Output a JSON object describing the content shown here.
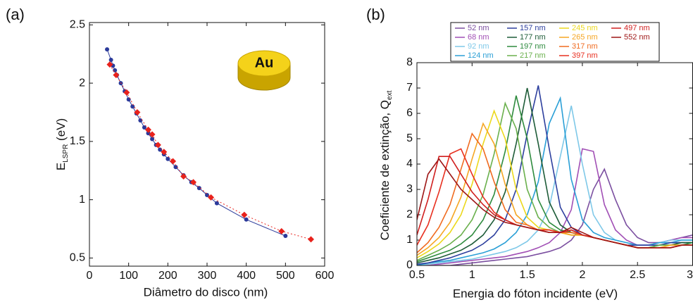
{
  "chart_data": [
    {
      "type": "line",
      "panel_label": "(a)",
      "annotation": "Au",
      "x_label": "Diâmetro do disco (nm)",
      "y_label": [
        "E",
        "LSPR",
        " (eV)"
      ],
      "xlim": [
        0,
        600
      ],
      "ylim": [
        0.43,
        2.52
      ],
      "xticks": [
        0,
        100,
        200,
        300,
        400,
        500,
        600
      ],
      "yticks": [
        0.5,
        1,
        1.5,
        2,
        2.5
      ],
      "grid": false,
      "series": [
        {
          "color": "#2b3a9a",
          "marker": "circle",
          "dash": "solid",
          "x": [
            45,
            55,
            60,
            65,
            70,
            80,
            90,
            100,
            110,
            120,
            130,
            140,
            150,
            160,
            170,
            180,
            190,
            200,
            220,
            240,
            260,
            280,
            300,
            325,
            400,
            500
          ],
          "values": [
            2.29,
            2.2,
            2.15,
            2.11,
            2.07,
            2.0,
            1.93,
            1.86,
            1.8,
            1.74,
            1.68,
            1.62,
            1.57,
            1.52,
            1.47,
            1.43,
            1.39,
            1.35,
            1.28,
            1.21,
            1.15,
            1.1,
            1.04,
            0.97,
            0.83,
            0.69
          ]
        },
        {
          "color": "#e8221c",
          "marker": "diamond",
          "dash": "dotted",
          "x": [
            52,
            68,
            95,
            122,
            150,
            160,
            175,
            190,
            213,
            240,
            265,
            310,
            395,
            490,
            565
          ],
          "values": [
            2.16,
            2.07,
            1.92,
            1.75,
            1.6,
            1.56,
            1.47,
            1.41,
            1.33,
            1.2,
            1.15,
            1.02,
            0.87,
            0.73,
            0.66
          ]
        }
      ]
    },
    {
      "type": "line",
      "panel_label": "(b)",
      "x_label": "Energia do fóton incidente (eV)",
      "y_label": [
        "Coeficiente de extinção, Q",
        "ext"
      ],
      "xlim": [
        0.5,
        3.0
      ],
      "ylim": [
        0,
        8
      ],
      "xticks": [
        0.5,
        1,
        1.5,
        2,
        2.5,
        3
      ],
      "yticks": [
        0,
        1,
        2,
        3,
        4,
        5,
        6,
        7,
        8
      ],
      "grid": false,
      "x": [
        0.5,
        0.6,
        0.7,
        0.8,
        0.9,
        1.0,
        1.1,
        1.2,
        1.3,
        1.4,
        1.5,
        1.6,
        1.7,
        1.8,
        1.9,
        2.0,
        2.1,
        2.2,
        2.3,
        2.4,
        2.5,
        2.6,
        2.7,
        2.8,
        2.9,
        3.0
      ],
      "series": [
        {
          "name": "52 nm",
          "color": "#7b4fa0",
          "values": [
            0,
            0,
            0,
            0,
            0.05,
            0.1,
            0.15,
            0.2,
            0.25,
            0.3,
            0.35,
            0.45,
            0.55,
            0.7,
            1.0,
            1.6,
            3.0,
            3.8,
            2.6,
            1.6,
            1.1,
            0.9,
            0.9,
            1.0,
            1.1,
            1.2
          ]
        },
        {
          "name": "68 nm",
          "color": "#a14fb5",
          "values": [
            0,
            0,
            0.05,
            0.1,
            0.15,
            0.2,
            0.25,
            0.3,
            0.35,
            0.45,
            0.55,
            0.7,
            0.9,
            1.3,
            2.2,
            4.6,
            4.5,
            2.4,
            1.4,
            1.0,
            0.8,
            0.8,
            0.9,
            1.0,
            1.1,
            1.1
          ]
        },
        {
          "name": "92 nm",
          "color": "#7ec8e8",
          "values": [
            0,
            0.05,
            0.1,
            0.15,
            0.2,
            0.25,
            0.35,
            0.45,
            0.55,
            0.7,
            0.95,
            1.4,
            2.3,
            4.3,
            6.3,
            4.0,
            2.0,
            1.3,
            1.0,
            0.9,
            0.8,
            0.8,
            0.9,
            1.0,
            1.0,
            1.0
          ]
        },
        {
          "name": "124 nm",
          "color": "#2a9fd6",
          "values": [
            0,
            0.1,
            0.15,
            0.2,
            0.3,
            0.4,
            0.5,
            0.65,
            0.9,
            1.3,
            2.0,
            3.3,
            5.6,
            6.6,
            3.4,
            1.8,
            1.3,
            1.1,
            1.0,
            0.9,
            0.8,
            0.8,
            0.9,
            0.9,
            1.0,
            1.0
          ]
        },
        {
          "name": "157 nm",
          "color": "#2d3f9e",
          "values": [
            0.05,
            0.1,
            0.2,
            0.3,
            0.45,
            0.6,
            0.85,
            1.2,
            1.8,
            3.0,
            5.2,
            7.1,
            4.6,
            2.3,
            1.5,
            1.2,
            1.1,
            1.0,
            0.9,
            0.8,
            0.8,
            0.8,
            0.8,
            0.9,
            0.9,
            0.9
          ]
        },
        {
          "name": "177 nm",
          "color": "#1e5c38",
          "values": [
            0.1,
            0.2,
            0.3,
            0.45,
            0.6,
            0.85,
            1.2,
            1.8,
            2.9,
            4.8,
            7.0,
            4.8,
            2.5,
            1.6,
            1.3,
            1.2,
            1.1,
            1.0,
            0.9,
            0.8,
            0.7,
            0.7,
            0.8,
            0.8,
            0.9,
            0.9
          ]
        },
        {
          "name": "197 nm",
          "color": "#2e8b3e",
          "values": [
            0.15,
            0.3,
            0.45,
            0.6,
            0.85,
            1.2,
            1.8,
            2.8,
            4.5,
            6.7,
            5.0,
            2.6,
            1.7,
            1.4,
            1.3,
            1.2,
            1.1,
            1.0,
            0.9,
            0.8,
            0.7,
            0.7,
            0.8,
            0.8,
            0.8,
            0.9
          ]
        },
        {
          "name": "217 nm",
          "color": "#6ab04c",
          "values": [
            0.2,
            0.4,
            0.6,
            0.85,
            1.2,
            1.8,
            2.8,
            4.4,
            6.4,
            5.4,
            3.0,
            1.9,
            1.5,
            1.3,
            1.2,
            1.2,
            1.1,
            1.0,
            0.9,
            0.8,
            0.7,
            0.7,
            0.8,
            0.8,
            0.8,
            0.8
          ]
        },
        {
          "name": "245 nm",
          "color": "#ecd81c",
          "values": [
            0.3,
            0.55,
            0.85,
            1.3,
            2.0,
            3.2,
            4.8,
            6.1,
            5.0,
            3.0,
            1.9,
            1.5,
            1.4,
            1.3,
            1.2,
            1.2,
            1.1,
            1.0,
            0.9,
            0.8,
            0.7,
            0.7,
            0.7,
            0.8,
            0.8,
            0.8
          ]
        },
        {
          "name": "265 nm",
          "color": "#f5a623",
          "values": [
            0.4,
            0.7,
            1.1,
            1.7,
            2.7,
            4.2,
            5.6,
            4.8,
            3.2,
            2.0,
            1.6,
            1.4,
            1.4,
            1.3,
            1.2,
            1.2,
            1.1,
            1.0,
            0.9,
            0.8,
            0.7,
            0.7,
            0.7,
            0.8,
            0.8,
            0.8
          ]
        },
        {
          "name": "317 nm",
          "color": "#f06b20",
          "values": [
            0.5,
            0.9,
            1.5,
            2.4,
            3.8,
            5.2,
            4.6,
            3.3,
            2.2,
            1.7,
            1.6,
            1.4,
            1.4,
            1.3,
            1.3,
            1.2,
            1.1,
            1.0,
            0.9,
            0.8,
            0.7,
            0.7,
            0.7,
            0.7,
            0.8,
            0.8
          ]
        },
        {
          "name": "397 nm",
          "color": "#e83020",
          "values": [
            0.8,
            1.6,
            2.9,
            4.4,
            4.6,
            3.6,
            2.7,
            2.1,
            1.8,
            1.6,
            1.5,
            1.4,
            1.4,
            1.3,
            1.4,
            1.2,
            1.1,
            1.0,
            0.9,
            0.8,
            0.7,
            0.7,
            0.7,
            0.7,
            0.8,
            0.8
          ]
        },
        {
          "name": "497 nm",
          "color": "#d01f1f",
          "values": [
            1.2,
            2.6,
            4.3,
            4.3,
            3.6,
            2.9,
            2.4,
            2.0,
            1.8,
            1.6,
            1.5,
            1.4,
            1.3,
            1.3,
            1.4,
            1.2,
            1.1,
            1.0,
            0.9,
            0.8,
            0.7,
            0.7,
            0.7,
            0.7,
            0.8,
            0.8
          ]
        },
        {
          "name": "552 nm",
          "color": "#9e1616",
          "values": [
            1.8,
            3.6,
            4.2,
            3.6,
            3.0,
            2.6,
            2.2,
            1.9,
            1.7,
            1.6,
            1.5,
            1.4,
            1.3,
            1.3,
            1.5,
            1.3,
            1.1,
            1.0,
            0.9,
            0.8,
            0.7,
            0.7,
            0.7,
            0.7,
            0.8,
            0.8
          ]
        }
      ]
    }
  ]
}
